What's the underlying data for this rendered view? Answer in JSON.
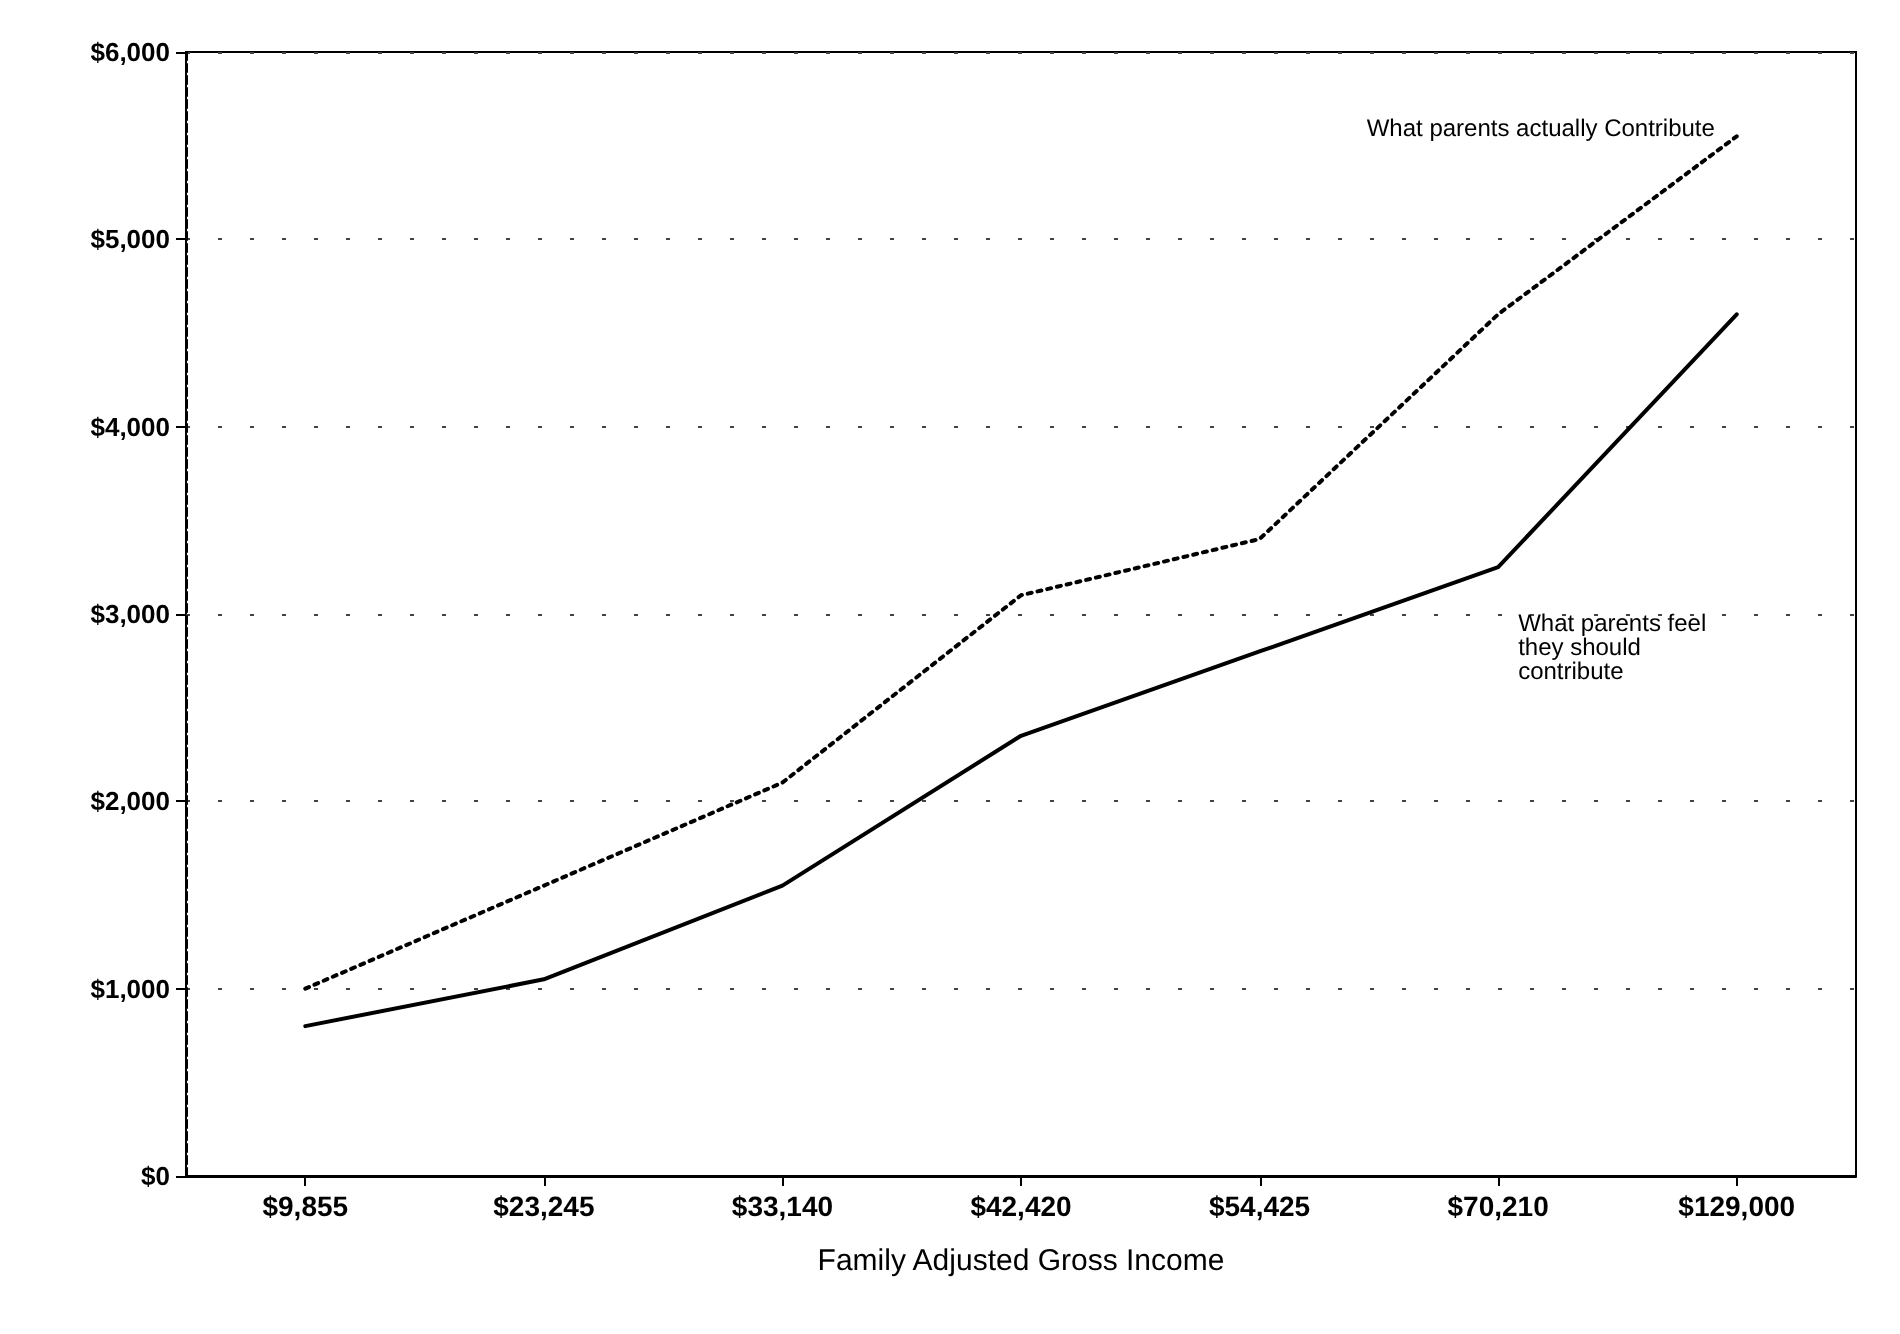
{
  "chart_data": {
    "type": "line",
    "xlabel": "Family Adjusted Gross Income",
    "categories": [
      "$9,855",
      "$23,245",
      "$33,140",
      "$42,420",
      "$54,425",
      "$70,210",
      "$129,000"
    ],
    "series": [
      {
        "name": "What parents actually Contribute",
        "color": "#000000",
        "line_style": "dotted",
        "values": [
          1000,
          1550,
          2100,
          3100,
          3400,
          4600,
          5550
        ]
      },
      {
        "name": "What parents feel they should contribute",
        "color": "#000000",
        "line_style": "solid",
        "values": [
          800,
          1050,
          1550,
          2350,
          2800,
          3250,
          4600
        ]
      }
    ],
    "ylim": [
      0,
      6000
    ],
    "yticks": [
      {
        "value": 0,
        "label": "$0"
      },
      {
        "value": 1000,
        "label": "$1,000"
      },
      {
        "value": 2000,
        "label": "$2,000"
      },
      {
        "value": 3000,
        "label": "$3,000"
      },
      {
        "value": 4000,
        "label": "$4,000"
      },
      {
        "value": 5000,
        "label": "$5,000"
      },
      {
        "value": 6000,
        "label": "$6,000"
      }
    ],
    "grid": "y",
    "legend": false,
    "marker": "none"
  }
}
